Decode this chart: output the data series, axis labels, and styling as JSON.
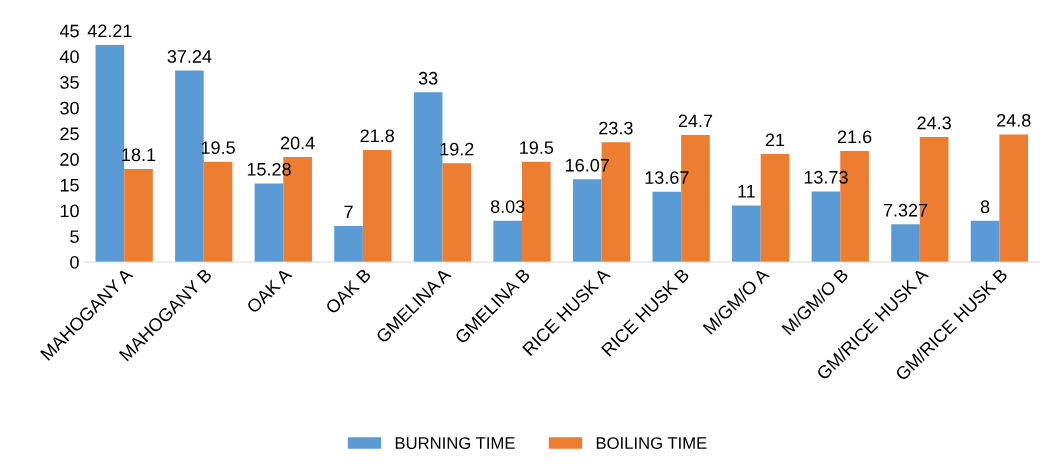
{
  "chart_data": {
    "type": "bar",
    "categories": [
      "MAHOGANY A",
      "MAHOGANY B",
      "OAK A",
      "OAK B",
      "GMELINA A",
      "GMELINA B",
      "RICE HUSK A",
      "RICE HUSK B",
      "M/GM/O A",
      "M/GM/O B",
      "GM/RICE HUSK A",
      "GM/RICE HUSK B"
    ],
    "series": [
      {
        "name": "BURNING TIME",
        "color": "#5b9bd5",
        "values": [
          42.21,
          37.24,
          15.28,
          7,
          33,
          8.03,
          16.07,
          13.67,
          11,
          13.73,
          7.327,
          8
        ]
      },
      {
        "name": "BOILING TIME",
        "color": "#ed7d31",
        "values": [
          18.1,
          19.5,
          20.4,
          21.8,
          19.2,
          19.5,
          23.3,
          24.7,
          21,
          21.6,
          24.3,
          24.8
        ]
      }
    ],
    "ylim": [
      0,
      45
    ],
    "yticks": [
      0,
      5,
      10,
      15,
      20,
      25,
      30,
      35,
      40,
      45
    ],
    "grid": false,
    "legend": "bottom",
    "data_labels": true
  }
}
